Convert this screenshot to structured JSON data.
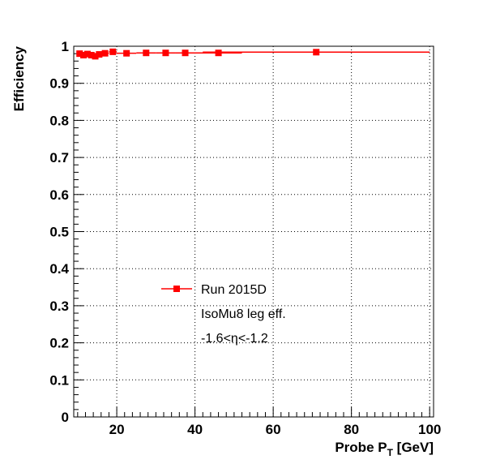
{
  "chart_data": {
    "type": "scatter",
    "title": "",
    "xlabel": "Probe P",
    "xlabel_sub": "T",
    "xlabel_unit": " [GeV]",
    "ylabel": "Efficiency",
    "xlim": [
      9,
      101
    ],
    "ylim": [
      0,
      1
    ],
    "x_ticks": [
      20,
      40,
      60,
      80,
      100
    ],
    "y_ticks": [
      0,
      0.1,
      0.2,
      0.3,
      0.4,
      0.5,
      0.6,
      0.7,
      0.8,
      0.9,
      1
    ],
    "y_tick_labels": [
      "0",
      "0.1",
      "0.2",
      "0.3",
      "0.4",
      "0.5",
      "0.6",
      "0.7",
      "0.8",
      "0.9",
      "1"
    ],
    "x_tick_labels": [
      "20",
      "40",
      "60",
      "80",
      "100"
    ],
    "grid": true,
    "series": [
      {
        "name": "Run 2015D",
        "color": "#ff0000",
        "points": [
          {
            "x": 10.5,
            "xerr": 0.5,
            "y": 0.98
          },
          {
            "x": 11.5,
            "xerr": 0.5,
            "y": 0.976
          },
          {
            "x": 12.5,
            "xerr": 0.5,
            "y": 0.979
          },
          {
            "x": 13.5,
            "xerr": 0.5,
            "y": 0.976
          },
          {
            "x": 14.5,
            "xerr": 0.5,
            "y": 0.973
          },
          {
            "x": 15.5,
            "xerr": 0.5,
            "y": 0.978
          },
          {
            "x": 17.0,
            "xerr": 1.0,
            "y": 0.981
          },
          {
            "x": 19.0,
            "xerr": 1.0,
            "y": 0.985
          },
          {
            "x": 22.5,
            "xerr": 2.5,
            "y": 0.981
          },
          {
            "x": 27.5,
            "xerr": 2.5,
            "y": 0.982
          },
          {
            "x": 32.5,
            "xerr": 2.5,
            "y": 0.982
          },
          {
            "x": 37.5,
            "xerr": 2.5,
            "y": 0.982
          },
          {
            "x": 46.0,
            "xerr": 6.0,
            "y": 0.982
          },
          {
            "x": 71.0,
            "xerr": 29.0,
            "y": 0.984
          }
        ]
      }
    ],
    "legend": {
      "position": "center-left",
      "entries": [
        "Run 2015D"
      ],
      "annotations": [
        "IsoMu8 leg eff.",
        "-1.6<η<-1.2"
      ]
    }
  }
}
